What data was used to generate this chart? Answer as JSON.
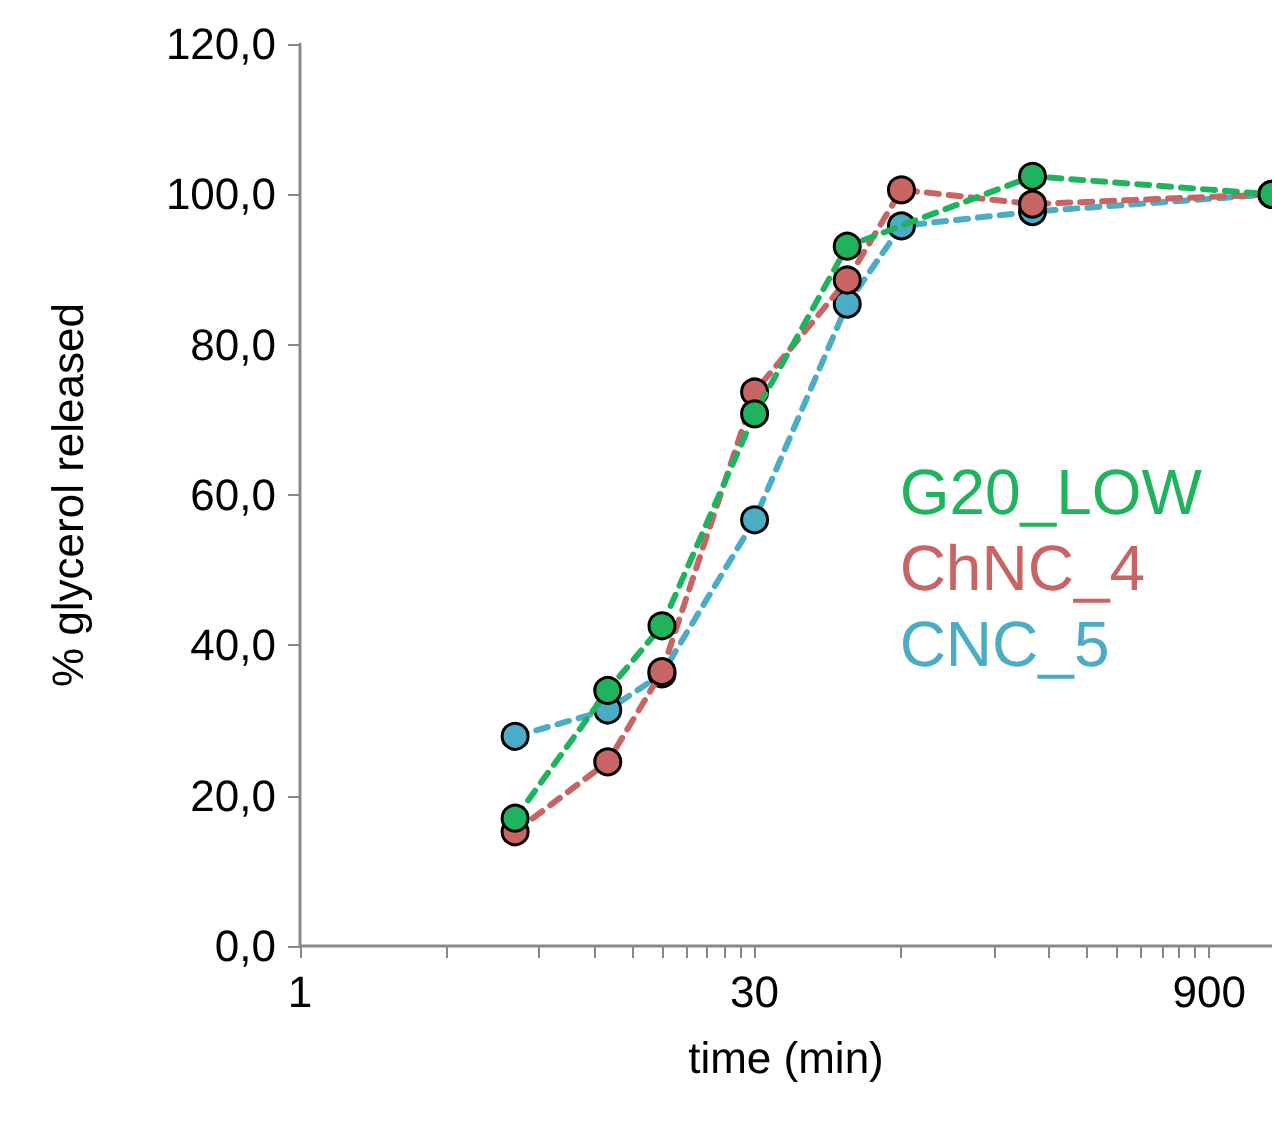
{
  "chart_data": {
    "type": "line",
    "xlabel": "time (min)",
    "ylabel": "% glycerol released",
    "log": "x",
    "x": [
      5,
      10,
      15,
      30,
      60,
      90,
      240,
      1440
    ],
    "series": [
      {
        "name": "G20_LOW",
        "color": "#1fb35e",
        "values": [
          17.0,
          34.0,
          42.6,
          70.8,
          93.1,
          null,
          102.4,
          100.0
        ]
      },
      {
        "name": "ChNC_4",
        "color": "#c96464",
        "values": [
          15.2,
          24.5,
          36.5,
          73.7,
          88.6,
          100.6,
          98.7,
          100.0
        ]
      },
      {
        "name": "CNC_5",
        "color": "#4bacc6",
        "values": [
          27.9,
          31.4,
          36.2,
          56.7,
          85.4,
          95.8,
          97.7,
          100.0
        ]
      }
    ],
    "xlim": [
      1,
      1440
    ],
    "xticks": [
      1,
      {
        "value": 3,
        "label": null
      },
      {
        "value": 6,
        "label": null
      },
      {
        "value": 9,
        "label": null
      },
      {
        "value": 12,
        "label": null
      },
      {
        "value": 15,
        "label": null
      },
      {
        "value": 18,
        "label": null
      },
      {
        "value": 21,
        "label": null
      },
      {
        "value": 24,
        "label": null
      },
      {
        "value": 27,
        "label": null
      },
      30,
      {
        "value": 90,
        "label": null
      },
      {
        "value": 180,
        "label": null
      },
      {
        "value": 270,
        "label": null
      },
      {
        "value": 360,
        "label": null
      },
      {
        "value": 450,
        "label": null
      },
      {
        "value": 540,
        "label": null
      },
      {
        "value": 630,
        "label": null
      },
      {
        "value": 720,
        "label": null
      },
      {
        "value": 810,
        "label": null
      },
      900
    ],
    "ylim": [
      0,
      120
    ],
    "yticks": [
      {
        "value": 0,
        "label": "0,0"
      },
      {
        "value": 20,
        "label": "20,0"
      },
      {
        "value": 40,
        "label": "40,0"
      },
      {
        "value": 60,
        "label": "60,0"
      },
      {
        "value": 80,
        "label": "80,0"
      },
      {
        "value": 100,
        "label": "100,0"
      },
      {
        "value": 120,
        "label": "120,0"
      }
    ],
    "grid": false,
    "legend": "right",
    "marker": "circle",
    "line_style": "dashed"
  }
}
